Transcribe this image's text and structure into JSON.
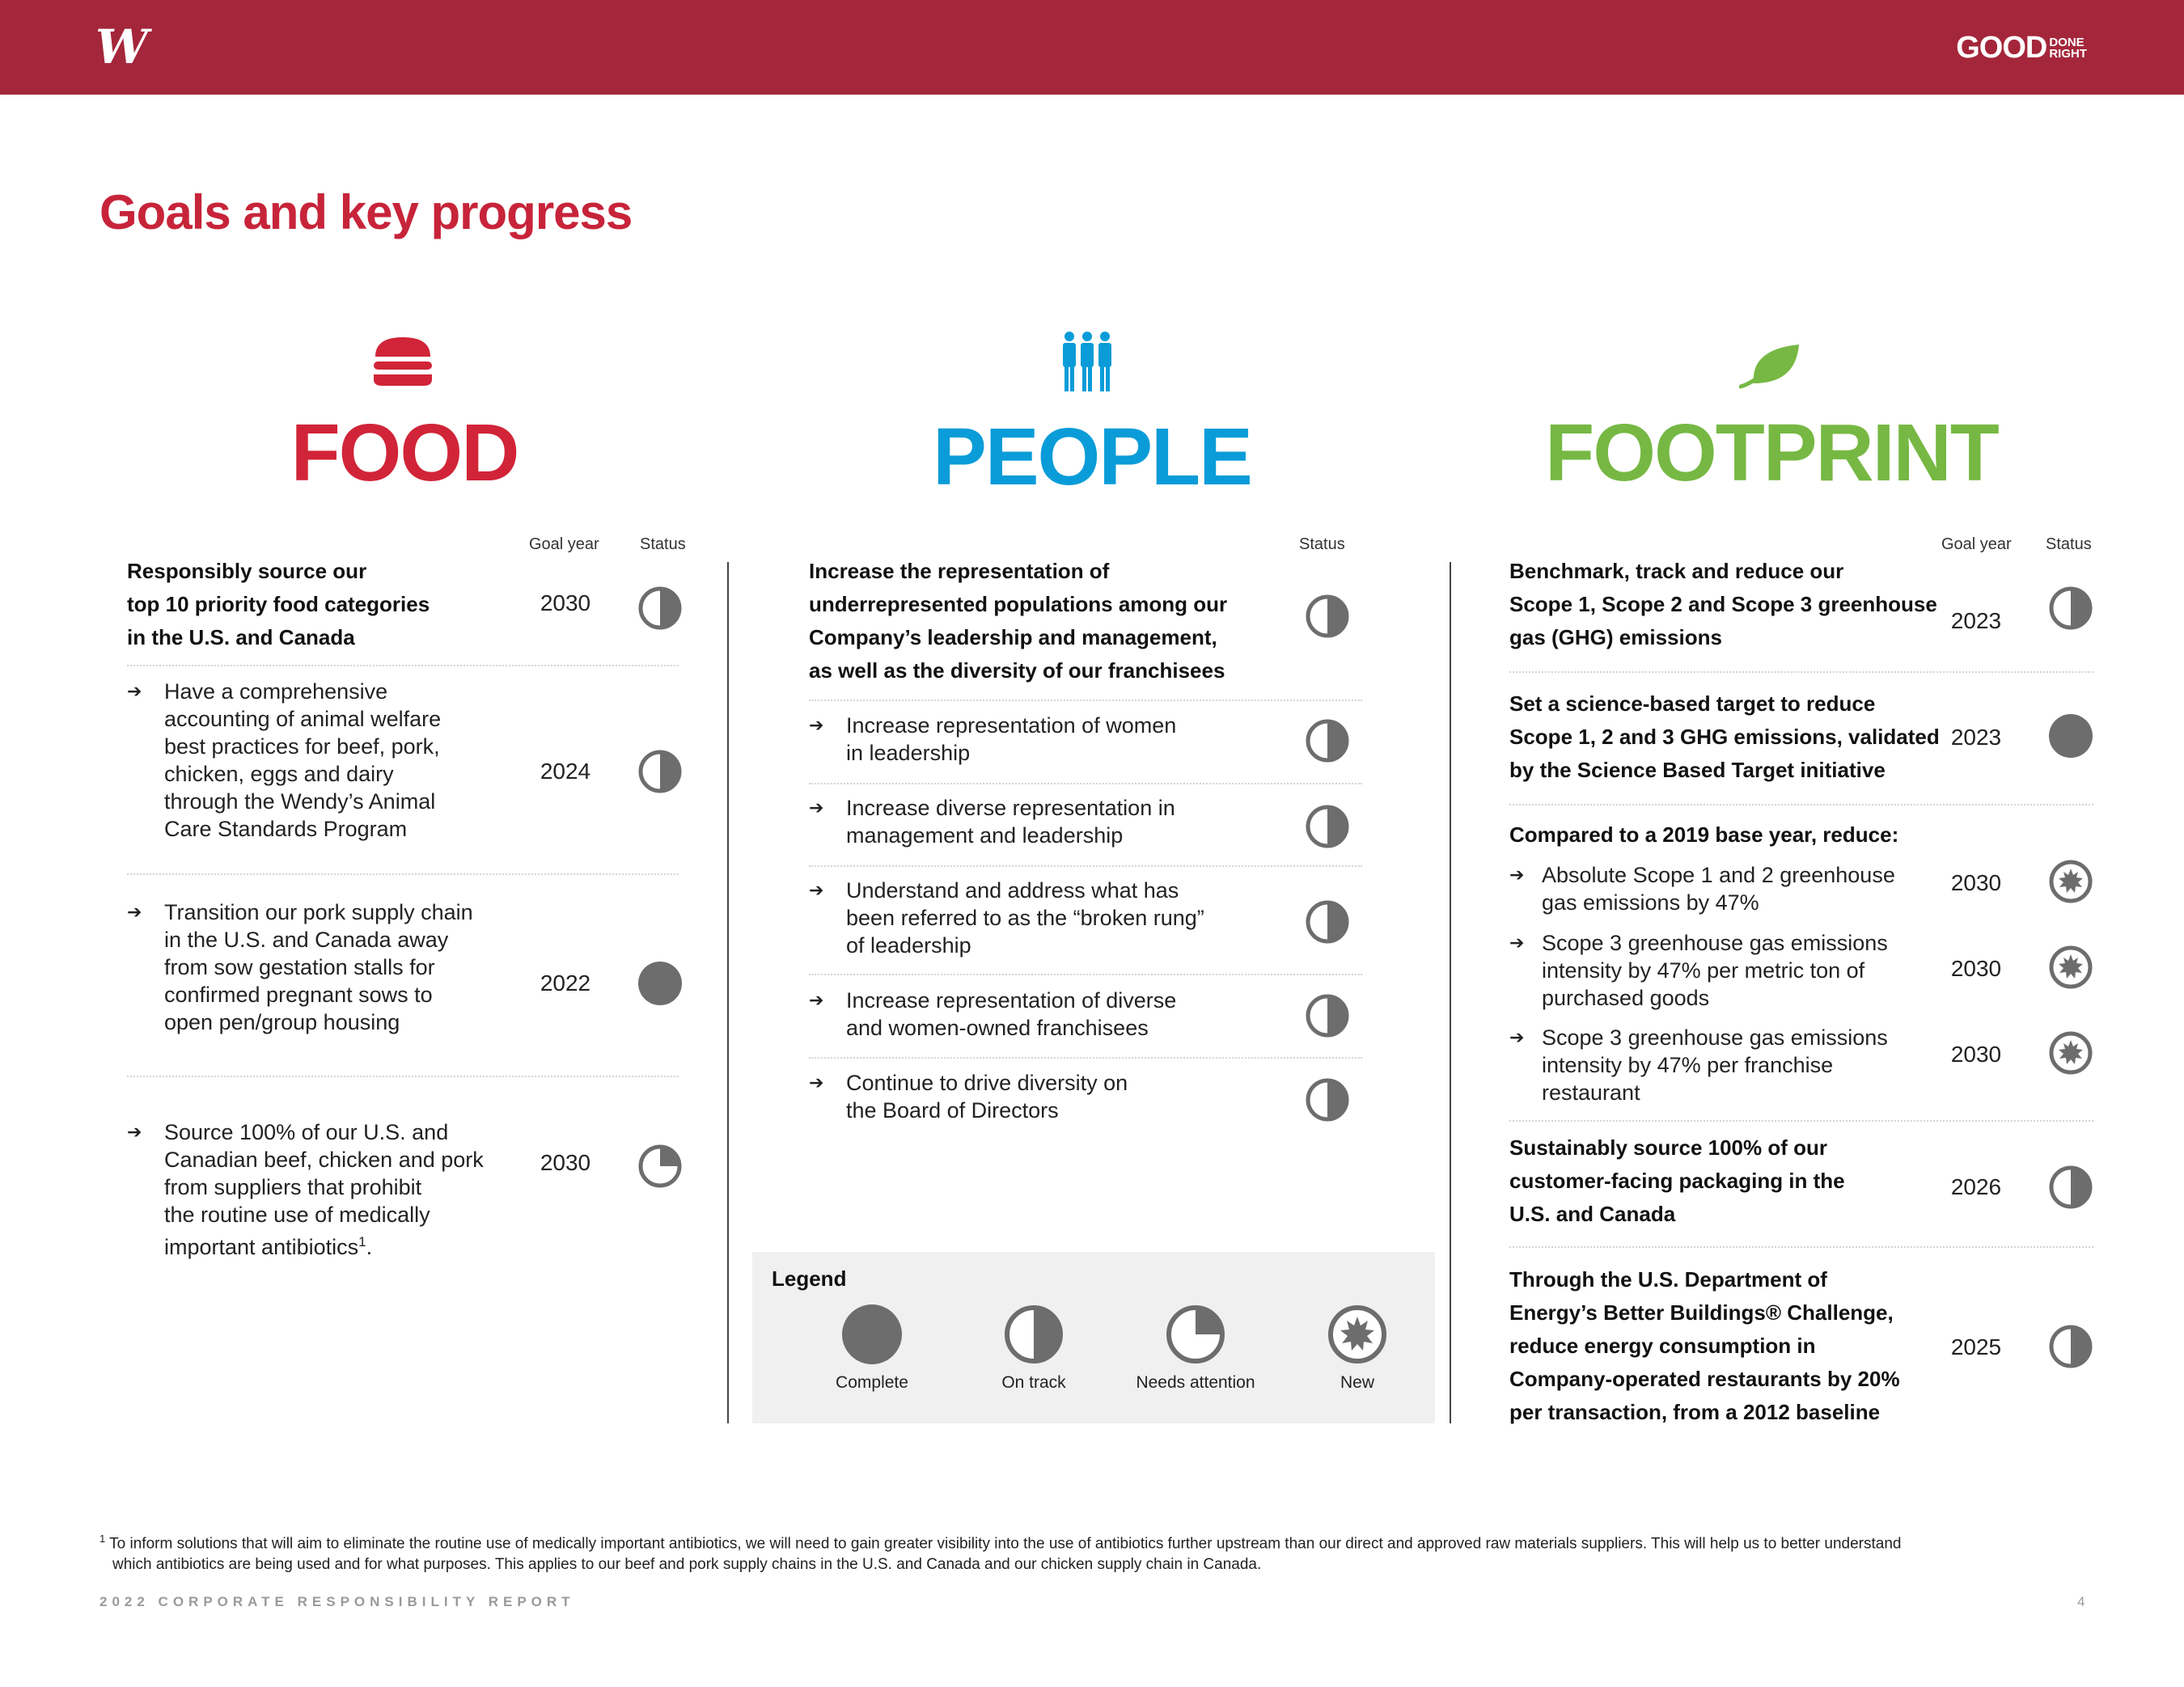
{
  "header": {
    "logo_letter": "W",
    "brand_main": "GOOD",
    "brand_small_1": "DONE",
    "brand_small_2": "RIGHT"
  },
  "page_title": "Goals and key progress",
  "pillars": {
    "food": "FOOD",
    "people": "PEOPLE",
    "footprint": "FOOTPRINT"
  },
  "columns": {
    "goal_year": "Goal year",
    "status": "Status"
  },
  "food": {
    "goals": [
      {
        "text_lines": [
          "Responsibly source our",
          "top 10 priority food categories",
          "in the U.S. and Canada"
        ],
        "year": "2030",
        "status": "On track"
      },
      {
        "text_lines": [
          "Have a comprehensive",
          "accounting of animal welfare",
          "best practices for beef, pork,",
          "chicken, eggs and dairy",
          "through the Wendy’s Animal",
          "Care Standards Program"
        ],
        "year": "2024",
        "status": "On track"
      },
      {
        "text_lines": [
          "Transition our pork supply chain",
          "in the U.S. and Canada away",
          "from sow gestation stalls for",
          "confirmed pregnant sows to",
          "open pen/group housing"
        ],
        "year": "2022",
        "status": "Complete"
      },
      {
        "text_lines": [
          "Source 100% of our U.S. and",
          "Canadian beef, chicken and pork",
          "from suppliers that prohibit",
          "the routine use of medically",
          "important antibiotics"
        ],
        "footnote_ref": "1",
        "trailing": ".",
        "year": "2030",
        "status": "Needs attention"
      }
    ]
  },
  "people": {
    "main_goal": {
      "text_lines": [
        "Increase the representation of",
        "underrepresented populations among our",
        "Company’s leadership and management,",
        "as well as the diversity of our franchisees"
      ],
      "status": "On track"
    },
    "goals": [
      {
        "text_lines": [
          "Increase representation of women",
          "in leadership"
        ],
        "status": "On track"
      },
      {
        "text_lines": [
          "Increase diverse representation in",
          "management and leadership"
        ],
        "status": "On track"
      },
      {
        "text_lines": [
          "Understand and address what has",
          "been referred to as the “broken rung”",
          "of leadership"
        ],
        "status": "On track"
      },
      {
        "text_lines": [
          "Increase representation of diverse",
          "and women-owned franchisees"
        ],
        "status": "On track"
      },
      {
        "text_lines": [
          "Continue to drive diversity on",
          "the Board of Directors"
        ],
        "status": "On track"
      }
    ]
  },
  "footprint": {
    "goals": [
      {
        "text_lines": [
          "Benchmark, track and reduce our",
          "Scope 1, Scope 2 and Scope 3 greenhouse",
          "gas (GHG) emissions"
        ],
        "year": "2023",
        "status": "On track"
      },
      {
        "text_lines": [
          "Set a science-based target to reduce",
          "Scope 1, 2 and 3 GHG emissions, validated",
          "by the Science Based Target initiative"
        ],
        "year": "2023",
        "status": "Complete"
      }
    ],
    "reduce_heading": "Compared to a 2019 base year, reduce:",
    "reduce_items": [
      {
        "text_lines": [
          "Absolute Scope 1 and 2 greenhouse",
          "gas emissions by 47%"
        ],
        "year": "2030",
        "status": "New"
      },
      {
        "text_lines": [
          "Scope 3 greenhouse gas emissions",
          "intensity by 47% per metric ton of",
          "purchased goods"
        ],
        "year": "2030",
        "status": "New"
      },
      {
        "text_lines": [
          "Scope 3 greenhouse gas emissions",
          "intensity by 47% per franchise",
          "restaurant"
        ],
        "year": "2030",
        "status": "New"
      }
    ],
    "goals_after": [
      {
        "text_lines": [
          "Sustainably source 100% of our",
          "customer-facing packaging in the",
          "U.S. and Canada"
        ],
        "year": "2026",
        "status": "On track"
      },
      {
        "text_lines": [
          "Through the U.S. Department of",
          "Energy’s Better Buildings® Challenge,",
          "reduce energy consumption in",
          "Company-operated restaurants by 20%",
          "per transaction, from a 2012 baseline"
        ],
        "year": "2025",
        "status": "On track"
      }
    ]
  },
  "legend": {
    "title": "Legend",
    "items": [
      {
        "label": "Complete"
      },
      {
        "label": "On track"
      },
      {
        "label": "Needs attention"
      },
      {
        "label": "New"
      }
    ]
  },
  "footnote": {
    "marker": "1",
    "line1": "To inform solutions that will aim to eliminate the routine use of medically important antibiotics, we will need to gain greater visibility into the use of antibiotics further upstream than our direct and approved raw materials suppliers. This will help us to better understand",
    "line2": "which antibiotics are being used and for what purposes. This applies to our beef and pork supply chains in the U.S. and Canada and our chicken supply chain in Canada."
  },
  "footer": {
    "report": "2022 CORPORATE RESPONSIBILITY REPORT",
    "page_number": "4"
  },
  "colors": {
    "header_bar": "#a4263a",
    "title_red": "#c7243a",
    "food_red": "#d12438",
    "people_blue": "#0a9cd8",
    "footprint_green": "#76b843",
    "status_gray": "#6d6d6d"
  }
}
